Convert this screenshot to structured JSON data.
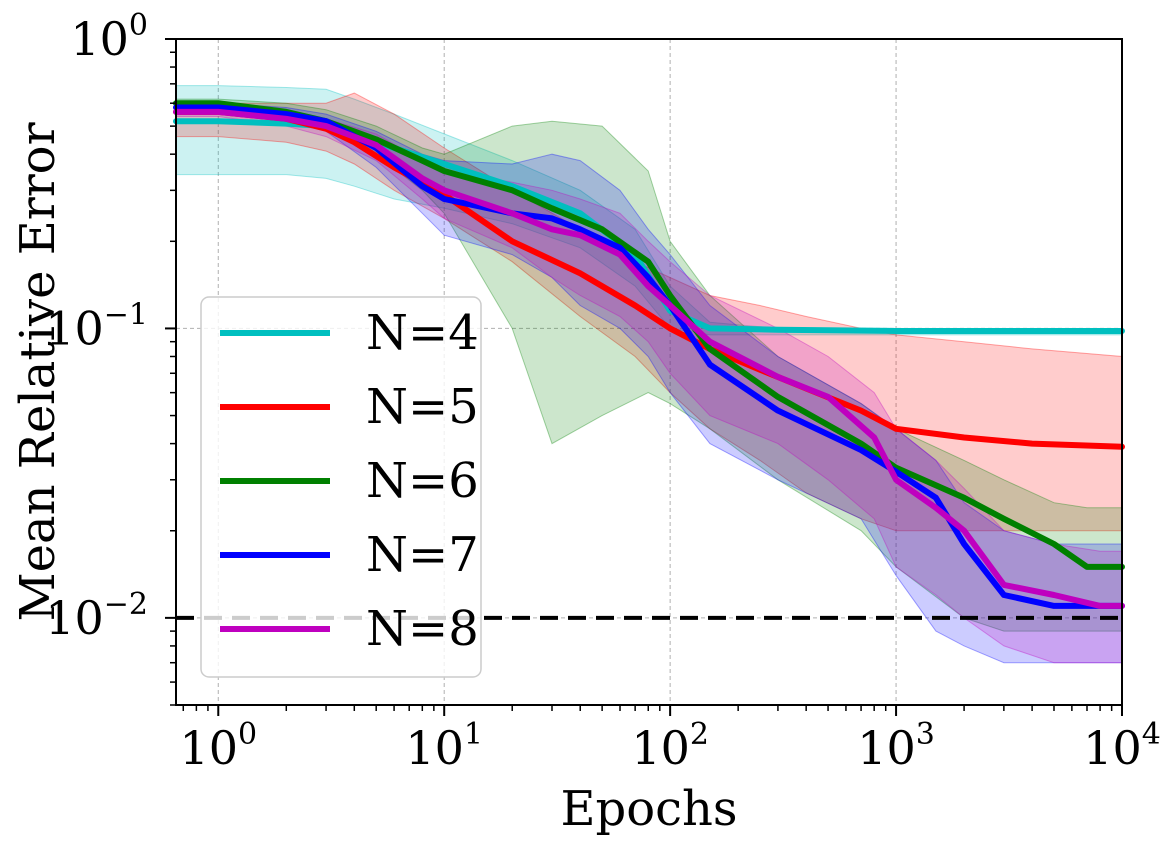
{
  "chart_data": {
    "type": "line",
    "title": "",
    "xlabel": "Epochs",
    "ylabel": "Mean Relative Error",
    "xscale": "log",
    "yscale": "log",
    "xlim": [
      0.65,
      10000
    ],
    "ylim": [
      0.005,
      1
    ],
    "grid": true,
    "legend_position": "lower-left",
    "x_ticks": [
      {
        "base": "10",
        "exp": "0",
        "value": 1
      },
      {
        "base": "10",
        "exp": "1",
        "value": 10
      },
      {
        "base": "10",
        "exp": "2",
        "value": 100
      },
      {
        "base": "10",
        "exp": "3",
        "value": 1000
      },
      {
        "base": "10",
        "exp": "4",
        "value": 10000
      }
    ],
    "y_ticks": [
      {
        "base": "10",
        "exp": "0",
        "value": 1
      },
      {
        "base": "10",
        "exp": "−1",
        "value": 0.1
      },
      {
        "base": "10",
        "exp": "−2",
        "value": 0.01
      }
    ],
    "reference_line": {
      "y": 0.01,
      "style": "dashed",
      "color": "#000000"
    },
    "series": [
      {
        "name": "N=4",
        "color": "#00bfbf",
        "x": [
          0.65,
          1,
          2,
          3,
          4,
          6,
          10,
          20,
          40,
          70,
          100,
          150,
          300,
          1000,
          3000,
          10000
        ],
        "y": [
          0.52,
          0.52,
          0.51,
          0.5,
          0.47,
          0.42,
          0.37,
          0.31,
          0.25,
          0.18,
          0.115,
          0.1,
          0.099,
          0.098,
          0.098,
          0.098
        ],
        "upper": [
          0.69,
          0.69,
          0.68,
          0.67,
          0.62,
          0.55,
          0.47,
          0.38,
          0.3,
          0.22,
          0.14,
          0.105,
          0.1,
          0.099,
          0.099,
          0.099
        ],
        "lower": [
          0.34,
          0.34,
          0.34,
          0.33,
          0.31,
          0.28,
          0.26,
          0.23,
          0.19,
          0.14,
          0.1,
          0.095,
          0.095,
          0.095,
          0.095,
          0.095
        ]
      },
      {
        "name": "N=5",
        "color": "#ff0000",
        "x": [
          0.65,
          1,
          2,
          3,
          4,
          6,
          10,
          20,
          40,
          70,
          100,
          150,
          250,
          400,
          700,
          1000,
          2000,
          4000,
          10000
        ],
        "y": [
          0.56,
          0.56,
          0.53,
          0.49,
          0.44,
          0.36,
          0.29,
          0.2,
          0.155,
          0.12,
          0.1,
          0.085,
          0.072,
          0.062,
          0.052,
          0.045,
          0.042,
          0.04,
          0.039
        ],
        "upper": [
          0.6,
          0.6,
          0.6,
          0.6,
          0.65,
          0.55,
          0.42,
          0.3,
          0.22,
          0.17,
          0.15,
          0.13,
          0.12,
          0.11,
          0.1,
          0.095,
          0.09,
          0.085,
          0.08
        ],
        "lower": [
          0.46,
          0.46,
          0.44,
          0.41,
          0.37,
          0.3,
          0.24,
          0.17,
          0.11,
          0.08,
          0.06,
          0.045,
          0.035,
          0.027,
          0.022,
          0.02,
          0.02,
          0.02,
          0.02
        ]
      },
      {
        "name": "N=6",
        "color": "#008000",
        "x": [
          0.65,
          1,
          2,
          3,
          5,
          8,
          10,
          20,
          30,
          50,
          80,
          100,
          150,
          300,
          700,
          1000,
          2000,
          3000,
          5000,
          7000,
          10000
        ],
        "y": [
          0.6,
          0.6,
          0.56,
          0.52,
          0.45,
          0.38,
          0.35,
          0.3,
          0.26,
          0.22,
          0.17,
          0.13,
          0.085,
          0.058,
          0.04,
          0.033,
          0.026,
          0.022,
          0.018,
          0.015,
          0.015
        ],
        "upper": [
          0.62,
          0.62,
          0.6,
          0.57,
          0.5,
          0.42,
          0.4,
          0.5,
          0.52,
          0.5,
          0.35,
          0.2,
          0.13,
          0.08,
          0.055,
          0.045,
          0.035,
          0.03,
          0.025,
          0.024,
          0.024
        ],
        "lower": [
          0.58,
          0.58,
          0.55,
          0.5,
          0.4,
          0.3,
          0.25,
          0.1,
          0.04,
          0.05,
          0.06,
          0.055,
          0.045,
          0.03,
          0.02,
          0.015,
          0.01,
          0.009,
          0.009,
          0.009,
          0.009
        ]
      },
      {
        "name": "N=7",
        "color": "#0000ff",
        "x": [
          0.65,
          1,
          2,
          3,
          5,
          8,
          10,
          20,
          30,
          40,
          60,
          80,
          100,
          150,
          300,
          700,
          1000,
          1500,
          2000,
          3000,
          5000,
          8000,
          10000
        ],
        "y": [
          0.58,
          0.58,
          0.55,
          0.52,
          0.42,
          0.31,
          0.28,
          0.25,
          0.24,
          0.22,
          0.19,
          0.15,
          0.12,
          0.075,
          0.052,
          0.038,
          0.032,
          0.026,
          0.018,
          0.012,
          0.011,
          0.011,
          0.011
        ],
        "upper": [
          0.6,
          0.6,
          0.58,
          0.55,
          0.48,
          0.4,
          0.38,
          0.37,
          0.4,
          0.38,
          0.3,
          0.22,
          0.18,
          0.12,
          0.08,
          0.055,
          0.045,
          0.035,
          0.025,
          0.02,
          0.018,
          0.018,
          0.018
        ],
        "lower": [
          0.56,
          0.56,
          0.52,
          0.48,
          0.36,
          0.25,
          0.21,
          0.18,
          0.15,
          0.12,
          0.1,
          0.08,
          0.06,
          0.04,
          0.03,
          0.022,
          0.014,
          0.009,
          0.008,
          0.007,
          0.007,
          0.007,
          0.007
        ]
      },
      {
        "name": "N=8",
        "color": "#bf00bf",
        "x": [
          0.65,
          1,
          2,
          3,
          5,
          8,
          10,
          20,
          30,
          40,
          60,
          80,
          100,
          150,
          300,
          500,
          800,
          1000,
          1500,
          2000,
          3000,
          5000,
          8000,
          10000
        ],
        "y": [
          0.56,
          0.56,
          0.53,
          0.5,
          0.43,
          0.33,
          0.3,
          0.25,
          0.22,
          0.21,
          0.18,
          0.14,
          0.12,
          0.09,
          0.068,
          0.058,
          0.042,
          0.03,
          0.024,
          0.02,
          0.013,
          0.012,
          0.011,
          0.011
        ],
        "upper": [
          0.58,
          0.58,
          0.56,
          0.53,
          0.47,
          0.38,
          0.35,
          0.32,
          0.3,
          0.28,
          0.25,
          0.2,
          0.17,
          0.13,
          0.1,
          0.08,
          0.06,
          0.045,
          0.035,
          0.028,
          0.02,
          0.018,
          0.017,
          0.017
        ],
        "lower": [
          0.54,
          0.54,
          0.5,
          0.46,
          0.38,
          0.28,
          0.24,
          0.19,
          0.15,
          0.13,
          0.11,
          0.09,
          0.07,
          0.05,
          0.04,
          0.03,
          0.022,
          0.015,
          0.012,
          0.01,
          0.008,
          0.007,
          0.007,
          0.007
        ]
      }
    ]
  }
}
